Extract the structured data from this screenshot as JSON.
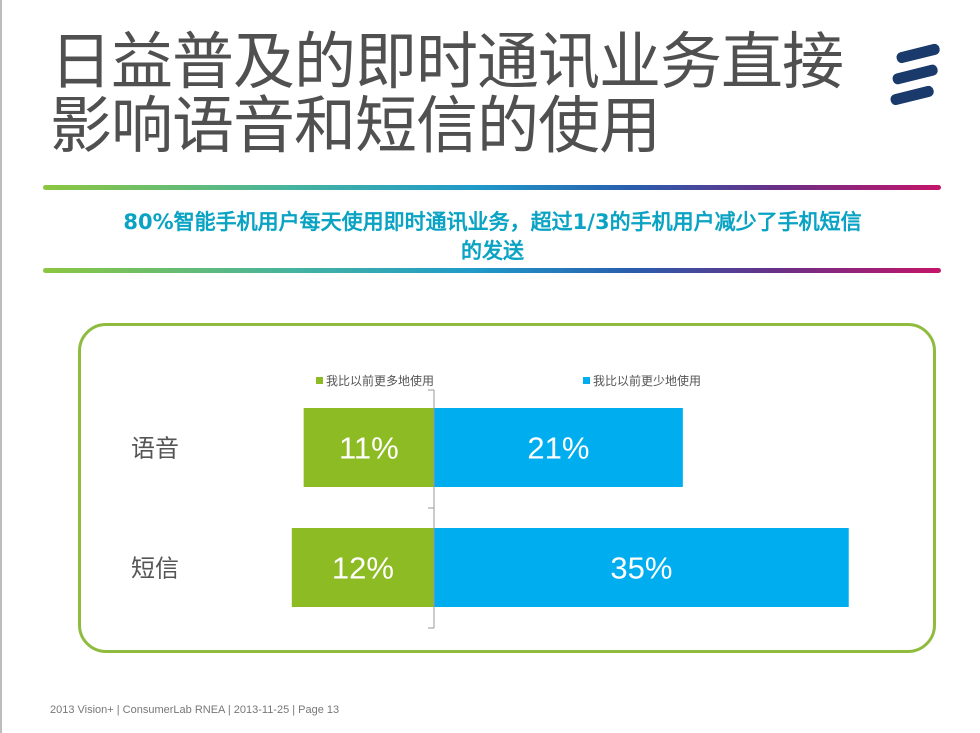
{
  "slide": {
    "title_line1": "日益普及的即时通讯业务直接",
    "title_line2": "影响语音和短信的使用",
    "subtitle_line1": "80%智能手机用户每天使用即时通讯业务，超过1/3的手机用户减少了手机短信",
    "subtitle_line2": "的发送",
    "footer": "2013 Vision+  |  ConsumerLab RNEA  |  2013-11-25  |  Page 13"
  },
  "colors": {
    "more": "#8dbb23",
    "less": "#00adef",
    "accent_text": "#0aa3c3",
    "panel_border": "#8fbc3f"
  },
  "chart_data": {
    "type": "bar",
    "orientation": "horizontal-diverging",
    "categories": [
      "语音",
      "短信"
    ],
    "series": [
      {
        "name": "我比以前更多地使用",
        "values": [
          11,
          12
        ],
        "labels": [
          "11%",
          "12%"
        ],
        "direction": "left"
      },
      {
        "name": "我比以前更少地使用",
        "values": [
          21,
          35
        ],
        "labels": [
          "21%",
          "35%"
        ],
        "direction": "right"
      }
    ],
    "legend": "top",
    "grid": false
  }
}
